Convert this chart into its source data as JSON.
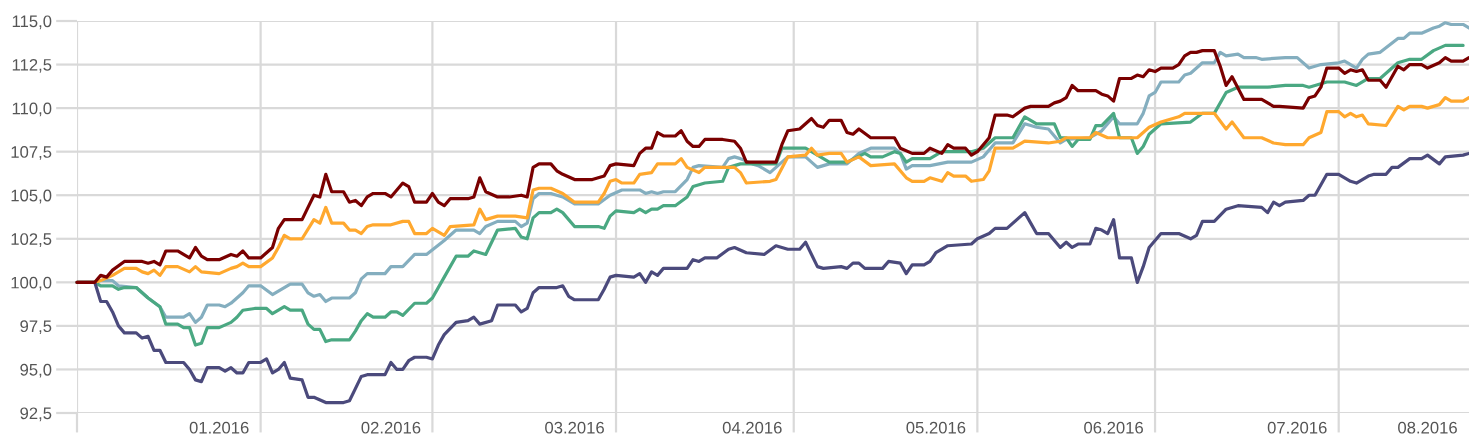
{
  "chart_data": {
    "type": "line",
    "xlim": [
      "2016-01-01",
      "2016-08-23"
    ],
    "xticks": [
      {
        "value": "2016-01-01",
        "label": null
      },
      {
        "value": "2016-02-01",
        "label": null
      },
      {
        "value": "2016-03-01",
        "label": null
      },
      {
        "value": "2016-04-01",
        "label": null
      },
      {
        "value": "2016-05-01",
        "label": null
      },
      {
        "value": "2016-06-01",
        "label": null
      },
      {
        "value": "2016-07-01",
        "label": null
      },
      {
        "value": "2016-08-01",
        "label": null
      },
      {
        "value": "2016-01-25",
        "label": "01.2016"
      },
      {
        "value": "2016-02-23",
        "label": "02.2016"
      },
      {
        "value": "2016-03-25",
        "label": "03.2016"
      },
      {
        "value": "2016-04-24",
        "label": "04.2016"
      },
      {
        "value": "2016-05-25",
        "label": "05.2016"
      },
      {
        "value": "2016-06-24",
        "label": "06.2016"
      },
      {
        "value": "2016-07-25",
        "label": "07.2016"
      },
      {
        "value": "2016-08-16",
        "label": "08.2016"
      }
    ],
    "ylim": [
      92.5,
      115
    ],
    "yticks": [
      {
        "value": 92.5,
        "label": "92,5"
      },
      {
        "value": 95,
        "label": "95,0"
      },
      {
        "value": 97.5,
        "label": "97,5"
      },
      {
        "value": 100,
        "label": "100,0"
      },
      {
        "value": 102.5,
        "label": "102,5"
      },
      {
        "value": 105,
        "label": "105,0"
      },
      {
        "value": 107.5,
        "label": "107,5"
      },
      {
        "value": 110,
        "label": "110,0"
      },
      {
        "value": 112.5,
        "label": "112,5"
      },
      {
        "value": 115,
        "label": "115,0"
      }
    ],
    "grid": true,
    "marker": "none",
    "line_style": "solid",
    "series": [
      {
        "color": "#84aebf",
        "x": [
          "2016-01-01",
          "2016-01-04",
          "2016-01-05",
          "2016-01-07",
          "2016-01-08",
          "2016-01-11",
          "2016-01-13",
          "2016-01-15",
          "2016-01-16",
          "2016-01-19",
          "2016-01-20",
          "2016-01-21",
          "2016-01-22",
          "2016-01-23",
          "2016-01-25",
          "2016-01-26",
          "2016-01-27",
          "2016-01-29",
          "2016-01-30",
          "2016-02-01",
          "2016-02-03",
          "2016-02-05",
          "2016-02-06",
          "2016-02-08",
          "2016-02-09",
          "2016-02-10",
          "2016-02-11",
          "2016-02-12",
          "2016-02-13",
          "2016-02-16",
          "2016-02-17",
          "2016-02-18",
          "2016-02-19",
          "2016-02-22",
          "2016-02-23",
          "2016-02-25",
          "2016-02-27",
          "2016-02-29",
          "2016-03-03",
          "2016-03-05",
          "2016-03-08",
          "2016-03-09",
          "2016-03-10",
          "2016-03-12",
          "2016-03-15",
          "2016-03-16",
          "2016-03-17",
          "2016-03-18",
          "2016-03-19",
          "2016-03-21",
          "2016-03-23",
          "2016-03-25",
          "2016-03-29",
          "2016-03-31",
          "2016-04-02",
          "2016-04-05",
          "2016-04-06",
          "2016-04-07",
          "2016-04-08",
          "2016-04-09",
          "2016-04-11",
          "2016-04-13",
          "2016-04-14",
          "2016-04-15",
          "2016-04-19",
          "2016-04-20",
          "2016-04-21",
          "2016-04-22",
          "2016-04-24",
          "2016-04-25",
          "2016-04-27",
          "2016-04-28",
          "2016-04-30",
          "2016-05-03",
          "2016-05-05",
          "2016-05-07",
          "2016-05-10",
          "2016-05-12",
          "2016-05-14",
          "2016-05-18",
          "2016-05-19",
          "2016-05-20",
          "2016-05-21",
          "2016-05-24",
          "2016-05-27",
          "2016-05-31",
          "2016-06-02",
          "2016-06-04",
          "2016-06-07",
          "2016-06-09",
          "2016-06-11",
          "2016-06-13",
          "2016-06-15",
          "2016-06-16",
          "2016-06-20",
          "2016-06-22",
          "2016-06-24",
          "2016-06-25",
          "2016-06-28",
          "2016-06-29",
          "2016-06-30",
          "2016-07-01",
          "2016-07-02",
          "2016-07-05",
          "2016-07-06",
          "2016-07-07",
          "2016-07-08",
          "2016-07-09",
          "2016-07-11",
          "2016-07-12",
          "2016-07-13",
          "2016-07-15",
          "2016-07-16",
          "2016-07-18",
          "2016-07-19",
          "2016-07-23",
          "2016-07-25",
          "2016-07-27",
          "2016-07-29",
          "2016-08-01",
          "2016-08-02",
          "2016-08-04",
          "2016-08-05",
          "2016-08-06",
          "2016-08-08",
          "2016-08-11",
          "2016-08-12",
          "2016-08-13",
          "2016-08-15",
          "2016-08-17",
          "2016-08-18",
          "2016-08-19",
          "2016-08-20",
          "2016-08-22",
          "2016-08-23"
        ],
        "values": [
          100,
          100,
          100.1,
          100.1,
          99.8,
          99.7,
          99.1,
          98.6,
          98,
          98,
          98.2,
          97.7,
          98,
          98.7,
          98.7,
          98.6,
          98.8,
          99.4,
          99.8,
          99.8,
          99.3,
          99.7,
          99.9,
          99.9,
          99.4,
          99.2,
          99.3,
          98.9,
          99.1,
          99.1,
          99.4,
          100.2,
          100.5,
          100.5,
          100.9,
          100.9,
          101.6,
          101.6,
          102.4,
          103,
          103,
          102.8,
          103.2,
          103.5,
          103.5,
          103.2,
          103.4,
          104.8,
          105.1,
          105.1,
          104.9,
          104.5,
          104.5,
          105,
          105.3,
          105.3,
          105.1,
          105.2,
          105.1,
          105.2,
          105.2,
          105.9,
          106.6,
          106.7,
          106.6,
          107.1,
          107.2,
          107.1,
          106.8,
          106.7,
          106.3,
          106.6,
          107.2,
          107.2,
          106.6,
          106.8,
          106.8,
          107.4,
          107.7,
          107.7,
          107.4,
          106.5,
          106.7,
          106.7,
          106.9,
          106.9,
          107.2,
          108,
          108,
          109.1,
          108.9,
          108.8,
          108,
          108.2,
          108.3,
          108.7,
          109.5,
          109.1,
          109.1,
          109.7,
          110.7,
          110.9,
          111.5,
          111.5,
          111.9,
          112,
          112.3,
          112.6,
          112.6,
          113.2,
          113,
          113.1,
          112.9,
          112.9,
          112.8,
          112.9,
          112.9,
          112.3,
          112.5,
          112.6,
          112.7,
          112.3,
          112.8,
          113.1,
          113.2,
          114,
          114,
          114.3,
          114.3,
          114.6,
          114.7,
          114.9,
          114.8,
          114.8,
          114.6
        ]
      },
      {
        "color": "#4aa882",
        "x": [
          "2016-01-01",
          "2016-01-04",
          "2016-01-05",
          "2016-01-07",
          "2016-01-08",
          "2016-01-09",
          "2016-01-11",
          "2016-01-13",
          "2016-01-15",
          "2016-01-16",
          "2016-01-18",
          "2016-01-19",
          "2016-01-20",
          "2016-01-21",
          "2016-01-22",
          "2016-01-23",
          "2016-01-25",
          "2016-01-27",
          "2016-01-28",
          "2016-01-29",
          "2016-01-31",
          "2016-02-02",
          "2016-02-03",
          "2016-02-05",
          "2016-02-06",
          "2016-02-08",
          "2016-02-09",
          "2016-02-10",
          "2016-02-11",
          "2016-02-12",
          "2016-02-13",
          "2016-02-16",
          "2016-02-17",
          "2016-02-18",
          "2016-02-19",
          "2016-02-20",
          "2016-02-22",
          "2016-02-23",
          "2016-02-24",
          "2016-02-25",
          "2016-02-27",
          "2016-02-29",
          "2016-03-01",
          "2016-03-03",
          "2016-03-05",
          "2016-03-07",
          "2016-03-08",
          "2016-03-10",
          "2016-03-12",
          "2016-03-15",
          "2016-03-16",
          "2016-03-17",
          "2016-03-18",
          "2016-03-19",
          "2016-03-21",
          "2016-03-22",
          "2016-03-23",
          "2016-03-25",
          "2016-03-29",
          "2016-03-30",
          "2016-03-31",
          "2016-04-01",
          "2016-04-04",
          "2016-04-05",
          "2016-04-06",
          "2016-04-07",
          "2016-04-08",
          "2016-04-09",
          "2016-04-11",
          "2016-04-13",
          "2016-04-14",
          "2016-04-16",
          "2016-04-19",
          "2016-04-20",
          "2016-04-22",
          "2016-04-28",
          "2016-04-29",
          "2016-05-03",
          "2016-05-04",
          "2016-05-07",
          "2016-05-10",
          "2016-05-13",
          "2016-05-14",
          "2016-05-16",
          "2016-05-18",
          "2016-05-19",
          "2016-05-20",
          "2016-05-21",
          "2016-05-24",
          "2016-05-26",
          "2016-05-31",
          "2016-06-02",
          "2016-06-04",
          "2016-06-07",
          "2016-06-09",
          "2016-06-11",
          "2016-06-14",
          "2016-06-15",
          "2016-06-16",
          "2016-06-17",
          "2016-06-18",
          "2016-06-20",
          "2016-06-21",
          "2016-06-22",
          "2016-06-24",
          "2016-06-25",
          "2016-06-27",
          "2016-06-28",
          "2016-06-29",
          "2016-06-30",
          "2016-07-02",
          "2016-07-07",
          "2016-07-09",
          "2016-07-11",
          "2016-07-13",
          "2016-07-15",
          "2016-07-20",
          "2016-07-23",
          "2016-07-26",
          "2016-07-27",
          "2016-07-30",
          "2016-08-02",
          "2016-08-04",
          "2016-08-06",
          "2016-08-08",
          "2016-08-11",
          "2016-08-13",
          "2016-08-15",
          "2016-08-17",
          "2016-08-19",
          "2016-08-22"
        ],
        "values": [
          100,
          100,
          99.8,
          99.8,
          99.6,
          99.7,
          99.7,
          99.1,
          98.6,
          97.6,
          97.6,
          97.4,
          97.4,
          96.4,
          96.5,
          97.4,
          97.4,
          97.7,
          98,
          98.4,
          98.5,
          98.5,
          98.2,
          98.6,
          98.4,
          98.4,
          97.6,
          97.3,
          97.3,
          96.6,
          96.7,
          96.7,
          97.2,
          97.8,
          98.2,
          98,
          98,
          98.3,
          98.3,
          98.1,
          98.8,
          98.8,
          99.1,
          100.3,
          101.5,
          101.5,
          101.8,
          101.6,
          103,
          103.1,
          102.6,
          102.5,
          103.7,
          104,
          104,
          104.2,
          104,
          103.2,
          103.2,
          103.1,
          103.8,
          104.1,
          104,
          104.2,
          104,
          104.2,
          104.2,
          104.4,
          104.4,
          104.9,
          105.5,
          105.7,
          105.8,
          106.6,
          106.8,
          106.8,
          107.7,
          107.7,
          107.5,
          106.9,
          106.9,
          107.4,
          107.2,
          107.2,
          107.5,
          107.4,
          106.9,
          107.1,
          107.1,
          107.5,
          107.5,
          107.7,
          108.3,
          108.3,
          109.5,
          109.1,
          109.1,
          108.3,
          108.3,
          107.8,
          108.2,
          108.2,
          109,
          109,
          109.7,
          108.3,
          108.3,
          107.4,
          107.8,
          108.5,
          109.1,
          109.2,
          109.7,
          109.7,
          110.9,
          111.2,
          111.2,
          111.3,
          111.3,
          111.2,
          111.5,
          111.5,
          111.3,
          111.7,
          111.7,
          112.6,
          112.8,
          112.8,
          113.3,
          113.6,
          113.6
        ]
      },
      {
        "color": "#ffa82e",
        "x": [
          "2016-01-01",
          "2016-01-04",
          "2016-01-05",
          "2016-01-07",
          "2016-01-09",
          "2016-01-11",
          "2016-01-12",
          "2016-01-13",
          "2016-01-14",
          "2016-01-15",
          "2016-01-16",
          "2016-01-18",
          "2016-01-20",
          "2016-01-21",
          "2016-01-22",
          "2016-01-25",
          "2016-01-27",
          "2016-01-28",
          "2016-01-29",
          "2016-01-30",
          "2016-02-01",
          "2016-02-03",
          "2016-02-04",
          "2016-02-05",
          "2016-02-06",
          "2016-02-08",
          "2016-02-10",
          "2016-02-11",
          "2016-02-12",
          "2016-02-13",
          "2016-02-15",
          "2016-02-16",
          "2016-02-17",
          "2016-02-18",
          "2016-02-19",
          "2016-02-20",
          "2016-02-23",
          "2016-02-25",
          "2016-02-26",
          "2016-02-27",
          "2016-02-29",
          "2016-03-01",
          "2016-03-03",
          "2016-03-04",
          "2016-03-08",
          "2016-03-09",
          "2016-03-10",
          "2016-03-12",
          "2016-03-15",
          "2016-03-17",
          "2016-03-18",
          "2016-03-19",
          "2016-03-21",
          "2016-03-23",
          "2016-03-25",
          "2016-03-29",
          "2016-03-30",
          "2016-03-31",
          "2016-04-01",
          "2016-04-02",
          "2016-04-04",
          "2016-04-05",
          "2016-04-07",
          "2016-04-08",
          "2016-04-11",
          "2016-04-12",
          "2016-04-13",
          "2016-04-15",
          "2016-04-16",
          "2016-04-21",
          "2016-04-22",
          "2016-04-23",
          "2016-04-27",
          "2016-04-28",
          "2016-04-30",
          "2016-05-03",
          "2016-05-04",
          "2016-05-05",
          "2016-05-07",
          "2016-05-09",
          "2016-05-10",
          "2016-05-12",
          "2016-05-14",
          "2016-05-18",
          "2016-05-20",
          "2016-05-21",
          "2016-05-23",
          "2016-05-24",
          "2016-05-26",
          "2016-05-27",
          "2016-05-28",
          "2016-05-30",
          "2016-05-31",
          "2016-06-02",
          "2016-06-03",
          "2016-06-04",
          "2016-06-07",
          "2016-06-09",
          "2016-06-13",
          "2016-06-15",
          "2016-06-16",
          "2016-06-20",
          "2016-06-21",
          "2016-06-23",
          "2016-06-28",
          "2016-06-30",
          "2016-07-02",
          "2016-07-05",
          "2016-07-06",
          "2016-07-11",
          "2016-07-13",
          "2016-07-14",
          "2016-07-16",
          "2016-07-19",
          "2016-07-21",
          "2016-07-23",
          "2016-07-26",
          "2016-07-27",
          "2016-07-29",
          "2016-07-30",
          "2016-08-01",
          "2016-08-02",
          "2016-08-03",
          "2016-08-04",
          "2016-08-05",
          "2016-08-06",
          "2016-08-09",
          "2016-08-11",
          "2016-08-12",
          "2016-08-13",
          "2016-08-15",
          "2016-08-16",
          "2016-08-18",
          "2016-08-19",
          "2016-08-20",
          "2016-08-22",
          "2016-08-23"
        ],
        "values": [
          100,
          100,
          100.1,
          100.4,
          100.8,
          100.8,
          100.6,
          100.5,
          100.7,
          100.4,
          100.9,
          100.9,
          100.6,
          100.9,
          100.6,
          100.5,
          100.8,
          100.9,
          101.1,
          100.9,
          100.9,
          101.4,
          102,
          102.7,
          102.5,
          102.5,
          103.6,
          103.4,
          104.3,
          103.4,
          103.4,
          103,
          103,
          102.8,
          103.2,
          103.3,
          103.3,
          103.5,
          103.5,
          102.8,
          102.8,
          103.1,
          102.7,
          103.2,
          103.3,
          104.2,
          103.6,
          103.8,
          103.8,
          103.7,
          105.3,
          105.4,
          105.4,
          105.1,
          104.6,
          104.6,
          105.1,
          105.8,
          105.9,
          105.7,
          105.7,
          106.2,
          106.3,
          106.8,
          106.8,
          107.1,
          106.6,
          106.3,
          106.6,
          106.6,
          106.3,
          105.7,
          105.8,
          105.9,
          107.2,
          107.3,
          107.7,
          107.3,
          107.4,
          107.4,
          106.9,
          107.2,
          106.7,
          106.8,
          106,
          105.8,
          105.8,
          106,
          105.8,
          106.3,
          106.1,
          106.1,
          105.8,
          105.9,
          106.4,
          107.7,
          107.7,
          108.1,
          108,
          108.1,
          108.3,
          108.3,
          108.6,
          108.3,
          108.3,
          108.9,
          109.2,
          109.5,
          109.7,
          109.7,
          108.8,
          109.2,
          108.3,
          108.3,
          108,
          107.9,
          107.9,
          108.3,
          108.6,
          109.8,
          109.8,
          109.5,
          109.7,
          109.5,
          109.6,
          109.1,
          109,
          110.1,
          109.9,
          110.1,
          110.1,
          110,
          110.2,
          110.6,
          110.4,
          110.4,
          110.6
        ]
      },
      {
        "color": "#4b4a7c",
        "x": [
          "2016-01-01",
          "2016-01-04",
          "2016-01-05",
          "2016-01-06",
          "2016-01-07",
          "2016-01-08",
          "2016-01-09",
          "2016-01-11",
          "2016-01-12",
          "2016-01-13",
          "2016-01-14",
          "2016-01-15",
          "2016-01-16",
          "2016-01-19",
          "2016-01-20",
          "2016-01-21",
          "2016-01-22",
          "2016-01-23",
          "2016-01-25",
          "2016-01-26",
          "2016-01-27",
          "2016-01-28",
          "2016-01-29",
          "2016-01-30",
          "2016-02-01",
          "2016-02-02",
          "2016-02-03",
          "2016-02-04",
          "2016-02-05",
          "2016-02-06",
          "2016-02-08",
          "2016-02-09",
          "2016-02-10",
          "2016-02-12",
          "2016-02-15",
          "2016-02-16",
          "2016-02-17",
          "2016-02-18",
          "2016-02-19",
          "2016-02-22",
          "2016-02-23",
          "2016-02-24",
          "2016-02-25",
          "2016-02-26",
          "2016-02-27",
          "2016-02-29",
          "2016-03-01",
          "2016-03-02",
          "2016-03-03",
          "2016-03-05",
          "2016-03-07",
          "2016-03-08",
          "2016-03-09",
          "2016-03-11",
          "2016-03-12",
          "2016-03-15",
          "2016-03-16",
          "2016-03-17",
          "2016-03-18",
          "2016-03-19",
          "2016-03-22",
          "2016-03-23",
          "2016-03-24",
          "2016-03-25",
          "2016-03-29",
          "2016-03-30",
          "2016-03-31",
          "2016-04-01",
          "2016-04-04",
          "2016-04-05",
          "2016-04-06",
          "2016-04-07",
          "2016-04-08",
          "2016-04-09",
          "2016-04-13",
          "2016-04-14",
          "2016-04-15",
          "2016-04-16",
          "2016-04-18",
          "2016-04-20",
          "2016-04-21",
          "2016-04-23",
          "2016-04-26",
          "2016-04-28",
          "2016-04-30",
          "2016-05-02",
          "2016-05-03",
          "2016-05-05",
          "2016-05-06",
          "2016-05-09",
          "2016-05-10",
          "2016-05-11",
          "2016-05-12",
          "2016-05-13",
          "2016-05-16",
          "2016-05-17",
          "2016-05-19",
          "2016-05-20",
          "2016-05-21",
          "2016-05-23",
          "2016-05-24",
          "2016-05-25",
          "2016-05-27",
          "2016-05-31",
          "2016-06-01",
          "2016-06-03",
          "2016-06-04",
          "2016-06-06",
          "2016-06-09",
          "2016-06-11",
          "2016-06-13",
          "2016-06-15",
          "2016-06-16",
          "2016-06-17",
          "2016-06-18",
          "2016-06-20",
          "2016-06-21",
          "2016-06-22",
          "2016-06-23",
          "2016-06-24",
          "2016-06-25",
          "2016-06-27",
          "2016-06-28",
          "2016-06-29",
          "2016-06-30",
          "2016-07-02",
          "2016-07-05",
          "2016-07-07",
          "2016-07-08",
          "2016-07-09",
          "2016-07-11",
          "2016-07-13",
          "2016-07-15",
          "2016-07-19",
          "2016-07-20",
          "2016-07-21",
          "2016-07-22",
          "2016-07-23",
          "2016-07-26",
          "2016-07-27",
          "2016-07-28",
          "2016-07-30",
          "2016-08-01",
          "2016-08-03",
          "2016-08-04",
          "2016-08-06",
          "2016-08-07",
          "2016-08-09",
          "2016-08-10",
          "2016-08-11",
          "2016-08-13",
          "2016-08-15",
          "2016-08-16",
          "2016-08-18",
          "2016-08-19",
          "2016-08-22",
          "2016-08-23"
        ],
        "values": [
          100,
          100,
          98.9,
          98.9,
          98.3,
          97.5,
          97.1,
          97.1,
          96.8,
          96.9,
          96.1,
          96.1,
          95.4,
          95.4,
          95,
          94.4,
          94.3,
          95.1,
          95.1,
          94.9,
          95.1,
          94.8,
          94.8,
          95.4,
          95.4,
          95.6,
          94.8,
          95,
          95.4,
          94.5,
          94.4,
          93.4,
          93.4,
          93.1,
          93.1,
          93.2,
          93.9,
          94.6,
          94.7,
          94.7,
          95.4,
          95,
          95,
          95.5,
          95.7,
          95.7,
          95.6,
          96.4,
          97,
          97.7,
          97.8,
          98,
          97.6,
          97.8,
          98.7,
          98.7,
          98.3,
          98.5,
          99.4,
          99.7,
          99.7,
          99.8,
          99.2,
          99,
          99,
          99.6,
          100.3,
          100.4,
          100.3,
          100.5,
          100,
          100.6,
          100.4,
          100.8,
          100.8,
          101.3,
          101.2,
          101.4,
          101.4,
          101.9,
          102,
          101.7,
          101.6,
          102.1,
          101.9,
          101.9,
          102.3,
          100.9,
          100.8,
          100.9,
          100.8,
          101.1,
          101.1,
          100.8,
          100.8,
          101.2,
          101.1,
          100.5,
          101,
          101,
          101.2,
          101.7,
          102.1,
          102.2,
          102.5,
          102.8,
          103.1,
          103.1,
          104,
          102.8,
          102.8,
          102,
          102.3,
          102,
          102.2,
          102.2,
          103.1,
          103,
          102.8,
          103.6,
          101.4,
          101.4,
          100,
          100.9,
          102,
          102.8,
          102.8,
          102.5,
          102.7,
          103.5,
          103.5,
          104.2,
          104.4,
          104.3,
          104,
          104.6,
          104.4,
          104.6,
          104.7,
          105,
          105,
          106.2,
          106.2,
          105.8,
          105.7,
          106.1,
          106.2,
          106.2,
          106.6,
          106.6,
          107.1,
          107.1,
          107.3,
          106.8,
          107.2,
          107.3,
          107.4
        ]
      },
      {
        "color": "#7a0000",
        "x": [
          "2016-01-01",
          "2016-01-04",
          "2016-01-05",
          "2016-01-06",
          "2016-01-07",
          "2016-01-09",
          "2016-01-12",
          "2016-01-13",
          "2016-01-14",
          "2016-01-15",
          "2016-01-16",
          "2016-01-18",
          "2016-01-20",
          "2016-01-21",
          "2016-01-22",
          "2016-01-23",
          "2016-01-25",
          "2016-01-27",
          "2016-01-28",
          "2016-01-29",
          "2016-01-30",
          "2016-02-01",
          "2016-02-02",
          "2016-02-03",
          "2016-02-04",
          "2016-02-05",
          "2016-02-08",
          "2016-02-09",
          "2016-02-10",
          "2016-02-11",
          "2016-02-12",
          "2016-02-13",
          "2016-02-15",
          "2016-02-16",
          "2016-02-17",
          "2016-02-18",
          "2016-02-19",
          "2016-02-20",
          "2016-02-22",
          "2016-02-23",
          "2016-02-25",
          "2016-02-26",
          "2016-02-27",
          "2016-02-29",
          "2016-03-01",
          "2016-03-02",
          "2016-03-03",
          "2016-03-04",
          "2016-03-07",
          "2016-03-08",
          "2016-03-09",
          "2016-03-10",
          "2016-03-12",
          "2016-03-14",
          "2016-03-16",
          "2016-03-17",
          "2016-03-18",
          "2016-03-19",
          "2016-03-21",
          "2016-03-22",
          "2016-03-23",
          "2016-03-25",
          "2016-03-28",
          "2016-03-30",
          "2016-03-31",
          "2016-04-01",
          "2016-04-04",
          "2016-04-05",
          "2016-04-06",
          "2016-04-07",
          "2016-04-08",
          "2016-04-09",
          "2016-04-11",
          "2016-04-12",
          "2016-04-13",
          "2016-04-14",
          "2016-04-15",
          "2016-04-16",
          "2016-04-19",
          "2016-04-21",
          "2016-04-22",
          "2016-04-23",
          "2016-04-28",
          "2016-04-29",
          "2016-04-30",
          "2016-05-02",
          "2016-05-04",
          "2016-05-05",
          "2016-05-06",
          "2016-05-07",
          "2016-05-09",
          "2016-05-10",
          "2016-05-11",
          "2016-05-12",
          "2016-05-14",
          "2016-05-18",
          "2016-05-19",
          "2016-05-21",
          "2016-05-23",
          "2016-05-24",
          "2016-05-26",
          "2016-05-27",
          "2016-05-28",
          "2016-05-30",
          "2016-05-31",
          "2016-06-01",
          "2016-06-03",
          "2016-06-04",
          "2016-06-06",
          "2016-06-07",
          "2016-06-09",
          "2016-06-10",
          "2016-06-13",
          "2016-06-14",
          "2016-06-15",
          "2016-06-16",
          "2016-06-17",
          "2016-06-18",
          "2016-06-21",
          "2016-06-22",
          "2016-06-23",
          "2016-06-24",
          "2016-06-25",
          "2016-06-27",
          "2016-06-28",
          "2016-06-29",
          "2016-06-30",
          "2016-07-01",
          "2016-07-02",
          "2016-07-04",
          "2016-07-05",
          "2016-07-06",
          "2016-07-07",
          "2016-07-08",
          "2016-07-09",
          "2016-07-11",
          "2016-07-12",
          "2016-07-13",
          "2016-07-14",
          "2016-07-16",
          "2016-07-19",
          "2016-07-21",
          "2016-07-22",
          "2016-07-26",
          "2016-07-27",
          "2016-07-28",
          "2016-07-29",
          "2016-07-30",
          "2016-08-01",
          "2016-08-02",
          "2016-08-03",
          "2016-08-04",
          "2016-08-05",
          "2016-08-06",
          "2016-08-08",
          "2016-08-09",
          "2016-08-11",
          "2016-08-12",
          "2016-08-13",
          "2016-08-15",
          "2016-08-16",
          "2016-08-18",
          "2016-08-19",
          "2016-08-20",
          "2016-08-22",
          "2016-08-23"
        ],
        "values": [
          100,
          100,
          100.4,
          100.3,
          100.7,
          101.2,
          101.2,
          101.1,
          101.2,
          101,
          101.8,
          101.8,
          101.4,
          102,
          101.5,
          101.3,
          101.3,
          101.6,
          101.5,
          101.8,
          101.4,
          101.4,
          101.7,
          102,
          103.1,
          103.6,
          103.6,
          104.3,
          105,
          104.9,
          106.2,
          105.2,
          105.2,
          104.6,
          104.7,
          104.4,
          104.9,
          105.1,
          105.1,
          104.9,
          105.7,
          105.5,
          104.6,
          104.6,
          105.1,
          104.6,
          104.4,
          104.8,
          104.8,
          104.9,
          106,
          105.2,
          104.9,
          104.9,
          105,
          104.9,
          106.6,
          106.8,
          106.8,
          106.4,
          106.2,
          105.9,
          105.9,
          106.1,
          106.7,
          106.8,
          106.7,
          107.4,
          107.7,
          107.7,
          108.6,
          108.4,
          108.4,
          108.7,
          108.1,
          107.8,
          107.8,
          108.2,
          108.2,
          108.1,
          107.7,
          106.9,
          106.9,
          107.9,
          108.7,
          108.8,
          109.4,
          109,
          108.9,
          109.3,
          109.3,
          108.6,
          108.5,
          108.8,
          108.3,
          108.3,
          107.7,
          107.4,
          107.4,
          107.7,
          107.4,
          107.9,
          107.7,
          107.7,
          107.3,
          107.5,
          108.3,
          109.6,
          109.6,
          109.5,
          110,
          110.1,
          110.1,
          110.3,
          110.4,
          110.6,
          111.3,
          111,
          111,
          110.8,
          110.7,
          110.4,
          111.7,
          111.7,
          111.9,
          111.8,
          112.2,
          112.1,
          112.3,
          112.3,
          112.5,
          113,
          113.2,
          113.2,
          113.3,
          113.3,
          112.4,
          111.3,
          111.8,
          110.5,
          110.5,
          110.1,
          110.1,
          110,
          110.6,
          110.7,
          111.2,
          112.3,
          112.3,
          112,
          112.2,
          112.1,
          112.2,
          111.6,
          111.6,
          111.2,
          112.4,
          112.2,
          112.5,
          112.5,
          112.3,
          112.6,
          112.9,
          112.7,
          112.7,
          112.9
        ]
      }
    ]
  }
}
